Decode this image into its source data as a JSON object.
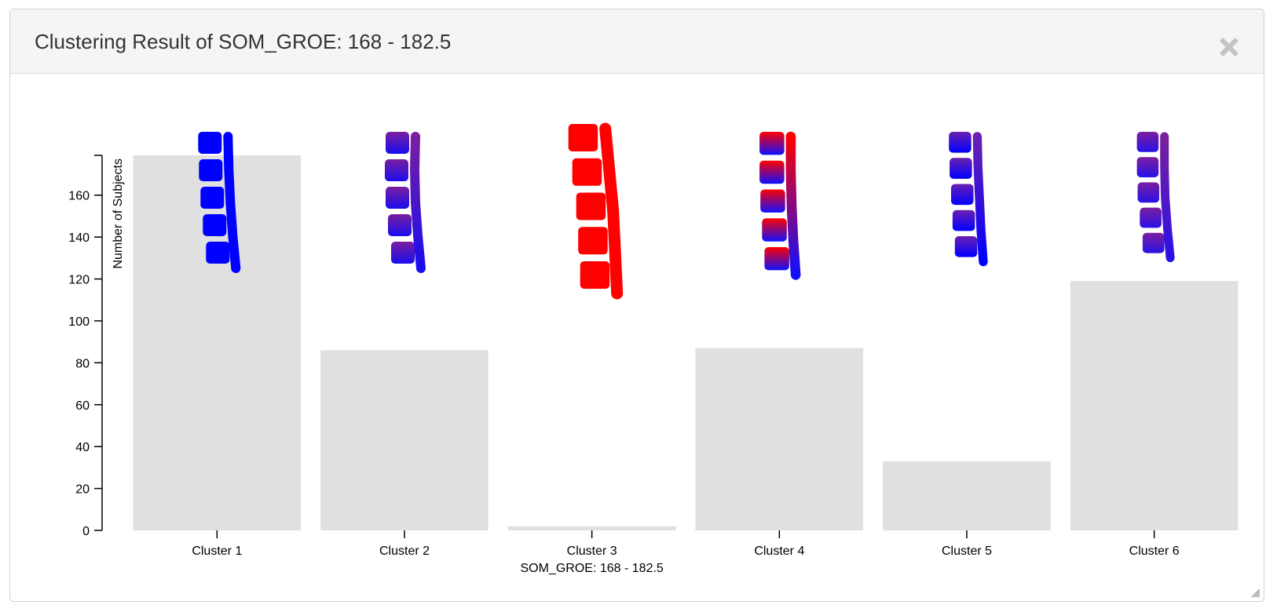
{
  "dialog": {
    "title": "Clustering Result of SOM_GROE: 168 - 182.5",
    "close_icon": "close-icon",
    "resize_icon": "resize-grip-icon"
  },
  "chart_data": {
    "type": "bar",
    "categories": [
      "Cluster 1",
      "Cluster 2",
      "Cluster 3",
      "Cluster 4",
      "Cluster 5",
      "Cluster 6"
    ],
    "values": [
      179,
      86,
      2,
      87,
      33,
      119
    ],
    "xlabel": "SOM_GROE: 168 - 182.5",
    "ylabel": "Number of Subjects",
    "ylim": [
      0,
      179
    ],
    "yticks": [
      0,
      20,
      40,
      60,
      80,
      100,
      120,
      140,
      160
    ],
    "grid": false,
    "bar_color": "#e0e0e0",
    "spine_glyph_colors": [
      {
        "top": "#0000ff",
        "bottom": "#0000ff"
      },
      {
        "top": "#7a1f9e",
        "bottom": "#1a0cf0"
      },
      {
        "top": "#ff0000",
        "bottom": "#ff0000"
      },
      {
        "top": "#ff0000",
        "bottom": "#1010ff"
      },
      {
        "top": "#6a20b0",
        "bottom": "#0000ff"
      },
      {
        "top": "#7a1f9e",
        "bottom": "#2a10e8"
      }
    ]
  }
}
